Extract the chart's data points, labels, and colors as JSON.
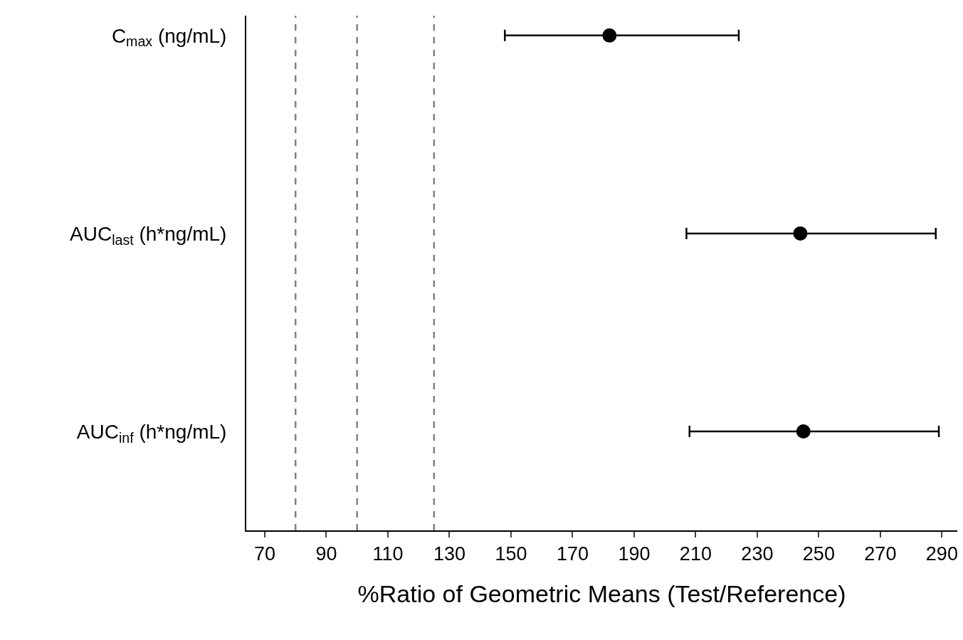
{
  "chart_data": {
    "type": "scatter",
    "orientation": "horizontal",
    "xlabel": "%Ratio of Geometric Means (Test/Reference)",
    "categories": [
      "C$_{max}$ (ng/mL)",
      "AUC$_{last}$ (h*ng/mL)",
      "AUC$_{inf}$ (h*ng/mL)"
    ],
    "values": [
      182,
      244,
      245
    ],
    "errors": [
      [
        148,
        224
      ],
      [
        207,
        288
      ],
      [
        208,
        289
      ]
    ],
    "color": "#000000",
    "marker": "circle",
    "xlim": [
      64,
      295
    ],
    "xticks": [
      70,
      90,
      110,
      130,
      150,
      170,
      190,
      210,
      230,
      250,
      270,
      290
    ],
    "ref_lines": [
      {
        "axis": "x",
        "value": 80,
        "color": "#808080",
        "line_style": "dashed"
      },
      {
        "axis": "x",
        "value": 100,
        "color": "#808080",
        "line_style": "dashed"
      },
      {
        "axis": "x",
        "value": 125,
        "color": "#808080",
        "line_style": "dashed"
      }
    ],
    "legend": false
  }
}
